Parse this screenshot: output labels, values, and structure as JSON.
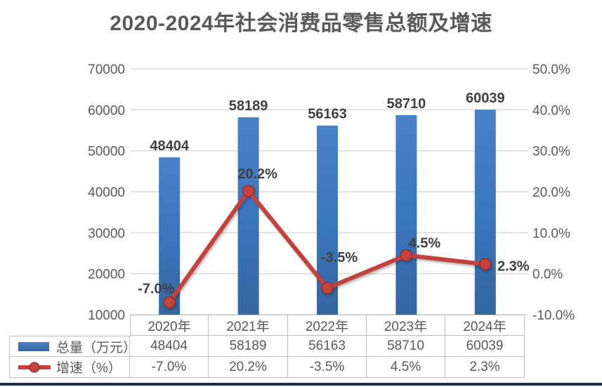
{
  "page": {
    "title": "2020-2024年社会消费品零售总额及增速"
  },
  "colors": {
    "bar": "#3A74BC",
    "bar_top": "#4A82C8",
    "bar_bottom": "#34669F",
    "line": "#C2423E",
    "marker_fill": "#C8433D",
    "marker_stroke": "#8E2F2B",
    "grid": "#D9D9D9",
    "axis_text": "#595959",
    "data_label_text": "#3F3F3F",
    "table_border": "#BFBFBF",
    "bottom_strip": "#203050"
  },
  "chart_data": {
    "type": "combo",
    "title": "2020-2024年社会消费品零售总额及增速",
    "categories": [
      "2020年",
      "2021年",
      "2022年",
      "2023年",
      "2024年"
    ],
    "series": [
      {
        "name": "总量（万元）",
        "type": "bar",
        "axis": "left",
        "values": [
          48404,
          58189,
          56163,
          58710,
          60039
        ],
        "labels": [
          "48404",
          "58189",
          "56163",
          "58710",
          "60039"
        ],
        "color": "#3A74BC"
      },
      {
        "name": "增速（%）",
        "type": "line",
        "axis": "right",
        "values": [
          -7.0,
          20.2,
          -3.5,
          4.5,
          2.3
        ],
        "labels": [
          "-7.0%",
          "20.2%",
          "-3.5%",
          "4.5%",
          "2.3%"
        ],
        "color": "#C2423E"
      }
    ],
    "left_axis": {
      "min": 10000,
      "max": 70000,
      "step": 10000,
      "tick_labels": [
        "70000",
        "60000",
        "50000",
        "40000",
        "30000",
        "20000",
        "10000"
      ]
    },
    "right_axis": {
      "min": -10,
      "max": 50,
      "step": 10,
      "tick_labels": [
        "50.0%",
        "40.0%",
        "30.0%",
        "20.0%",
        "10.0%",
        "0.0%",
        "-10.0%"
      ]
    },
    "grid": true,
    "legend_position": "data-table-left"
  },
  "data_table": {
    "corner": "",
    "headers": [
      "2020年",
      "2021年",
      "2022年",
      "2023年",
      "2024年"
    ],
    "rows": [
      {
        "legend": "总量（万元）",
        "swatch": "bar",
        "values": [
          "48404",
          "58189",
          "56163",
          "58710",
          "60039"
        ]
      },
      {
        "legend": "增速（%）",
        "swatch": "line",
        "values": [
          "-7.0%",
          "20.2%",
          "-3.5%",
          "4.5%",
          "2.3%"
        ]
      }
    ]
  }
}
